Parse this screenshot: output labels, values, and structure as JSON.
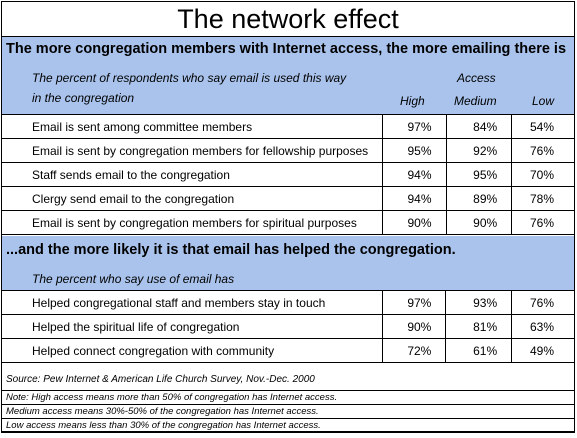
{
  "title": "The network effect",
  "section1": {
    "headline": "The more congregation members with Internet access, the more emailing there is",
    "subtitle_line1": "The percent of respondents who say email is used this way",
    "subtitle_line2": "in the congregation",
    "access_label": "Access",
    "columns": [
      "High",
      "Medium",
      "Low"
    ],
    "rows": [
      {
        "label": "Email is sent among committee members",
        "high": "97%",
        "medium": "84%",
        "low": "54%"
      },
      {
        "label": "Email is sent by congregation members for fellowship purposes",
        "high": "95%",
        "medium": "92%",
        "low": "76%"
      },
      {
        "label": "Staff sends email to the congregation",
        "high": "94%",
        "medium": "95%",
        "low": "70%"
      },
      {
        "label": "Clergy send email to the congregation",
        "high": "94%",
        "medium": "89%",
        "low": "78%"
      },
      {
        "label": "Email is sent by congregation members for spiritual purposes",
        "high": "90%",
        "medium": "90%",
        "low": "76%"
      }
    ]
  },
  "section2": {
    "headline": "...and the more likely it is that email has helped the congregation.",
    "subtitle": "The percent who say use of email has",
    "rows": [
      {
        "label": "Helped congregational staff and members stay in touch",
        "high": "97%",
        "medium": "93%",
        "low": "76%"
      },
      {
        "label": "Helped the spiritual life of congregation",
        "high": "90%",
        "medium": "81%",
        "low": "63%"
      },
      {
        "label": "Helped connect congregation with community",
        "high": "72%",
        "medium": "61%",
        "low": "49%"
      }
    ]
  },
  "source": "Source:  Pew Internet & American Life Church Survey, Nov.-Dec. 2000",
  "notes": [
    "Note: High access means more than 50% of congregation has Internet access.",
    "Medium access means 30%-50% of the congregation has Internet access.",
    "Low access means less than 30% of the congregation has Internet access."
  ]
}
